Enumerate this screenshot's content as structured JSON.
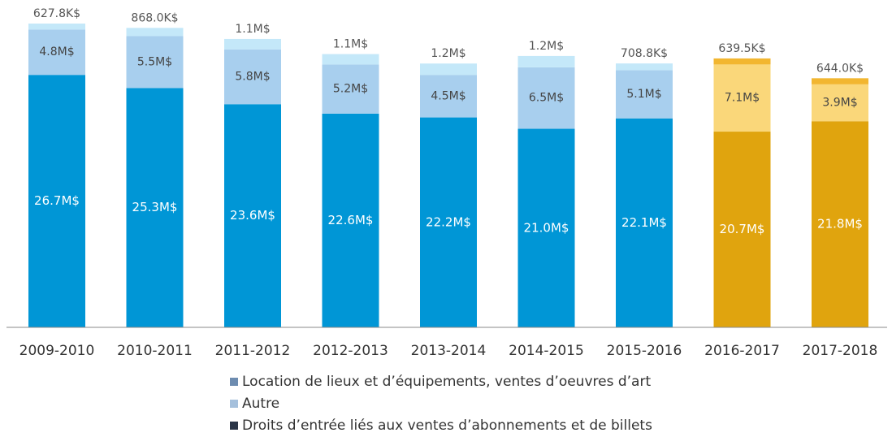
{
  "chart_data": {
    "type": "stacked_bar",
    "categories": [
      "2009-2010",
      "2010-2011",
      "2011-2012",
      "2012-2013",
      "2013-2014",
      "2014-2015",
      "2015-2016",
      "2016-2017",
      "2017-2018"
    ],
    "series": [
      {
        "name": "Droits d’entrée liés aux ventes d’abonnements et de billets",
        "color": "#2a3547",
        "colors": [
          "#0096d6",
          "#0096d6",
          "#0096d6",
          "#0096d6",
          "#0096d6",
          "#0096d6",
          "#0096d6",
          "#e0a40e",
          "#e0a40e"
        ],
        "values": [
          26.7,
          25.3,
          23.6,
          22.6,
          22.2,
          21.0,
          22.1,
          20.7,
          21.8
        ],
        "value_labels": [
          "26.7M$",
          "25.3M$",
          "23.6M$",
          "22.6M$",
          "22.2M$",
          "21.0M$",
          "22.1M$",
          "20.7M$",
          "21.8M$"
        ]
      },
      {
        "name": "Autre",
        "color": "#a5c0dc",
        "colors": [
          "#a8cfee",
          "#a8cfee",
          "#a8cfee",
          "#a8cfee",
          "#a8cfee",
          "#a8cfee",
          "#a8cfee",
          "#fad77a",
          "#fad77a"
        ],
        "values": [
          4.8,
          5.5,
          5.8,
          5.2,
          4.5,
          6.5,
          5.1,
          7.1,
          3.9
        ],
        "value_labels": [
          "4.8M$",
          "5.5M$",
          "5.8M$",
          "5.2M$",
          "4.5M$",
          "6.5M$",
          "5.1M$",
          "7.1M$",
          "3.9M$"
        ]
      },
      {
        "name": "Location de lieux et d’équipements, ventes d’oeuvres d’art",
        "color": "#6d8cb0",
        "colors": [
          "#c4e8f9",
          "#c4e8f9",
          "#c4e8f9",
          "#c4e8f9",
          "#c4e8f9",
          "#c4e8f9",
          "#c4e8f9",
          "#f2b630",
          "#f2b630"
        ],
        "values": [
          0.6278,
          0.868,
          1.1,
          1.1,
          1.2,
          1.2,
          0.7088,
          0.6395,
          0.644
        ],
        "value_labels": [
          "627.8K$",
          "868.0K$",
          "1.1M$",
          "1.1M$",
          "1.2M$",
          "1.2M$",
          "708.8K$",
          "639.5K$",
          "644.0K$"
        ]
      }
    ]
  }
}
